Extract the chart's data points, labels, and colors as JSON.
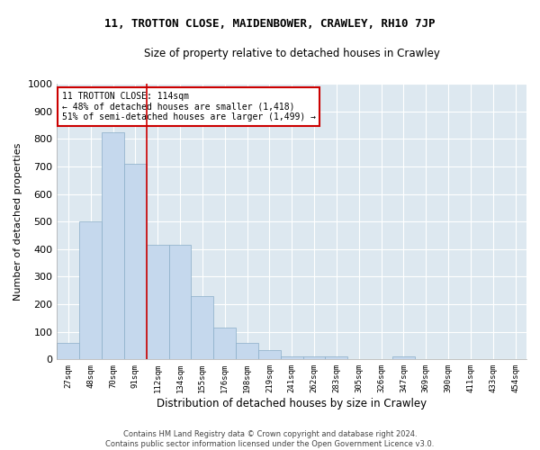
{
  "title": "11, TROTTON CLOSE, MAIDENBOWER, CRAWLEY, RH10 7JP",
  "subtitle": "Size of property relative to detached houses in Crawley",
  "xlabel": "Distribution of detached houses by size in Crawley",
  "ylabel": "Number of detached properties",
  "categories": [
    "27sqm",
    "48sqm",
    "70sqm",
    "91sqm",
    "112sqm",
    "134sqm",
    "155sqm",
    "176sqm",
    "198sqm",
    "219sqm",
    "241sqm",
    "262sqm",
    "283sqm",
    "305sqm",
    "326sqm",
    "347sqm",
    "369sqm",
    "390sqm",
    "411sqm",
    "433sqm",
    "454sqm"
  ],
  "values": [
    60,
    500,
    825,
    710,
    415,
    415,
    230,
    115,
    60,
    33,
    10,
    10,
    10,
    0,
    0,
    10,
    0,
    0,
    0,
    0,
    0
  ],
  "bar_color": "#c5d8ed",
  "bar_edge_color": "#8aaec8",
  "highlight_line_color": "#cc0000",
  "annotation_text": "11 TROTTON CLOSE: 114sqm\n← 48% of detached houses are smaller (1,418)\n51% of semi-detached houses are larger (1,499) →",
  "annotation_box_color": "#ffffff",
  "annotation_box_edge_color": "#cc0000",
  "ylim": [
    0,
    1000
  ],
  "yticks": [
    0,
    100,
    200,
    300,
    400,
    500,
    600,
    700,
    800,
    900,
    1000
  ],
  "background_color": "#dde8f0",
  "grid_color": "#ffffff",
  "fig_background": "#ffffff",
  "footer_line1": "Contains HM Land Registry data © Crown copyright and database right 2024.",
  "footer_line2": "Contains public sector information licensed under the Open Government Licence v3.0.",
  "title_fontsize": 9,
  "subtitle_fontsize": 8.5
}
